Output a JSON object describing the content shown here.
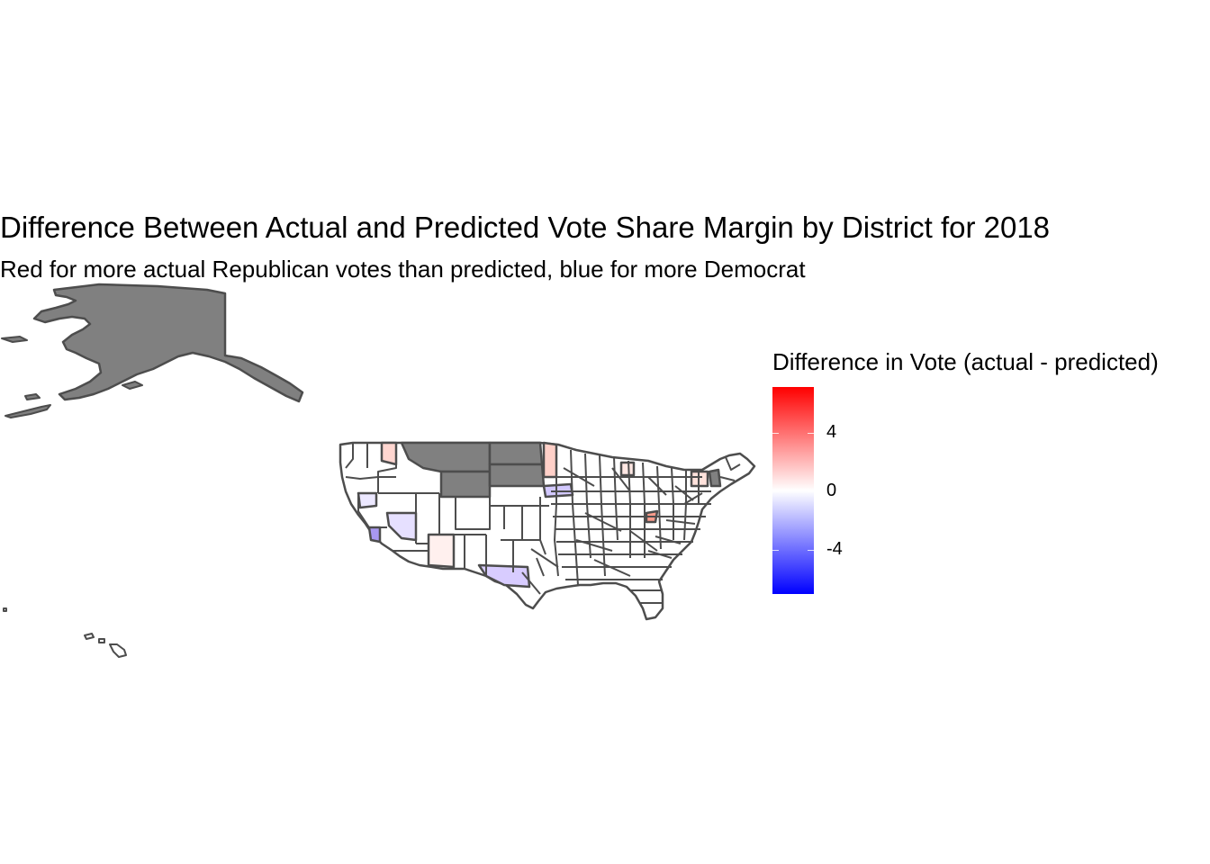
{
  "chart": {
    "title": "Difference Between Actual and Predicted Vote Share Margin by District for 2018",
    "subtitle": "Red for more actual Republican votes than predicted, blue for more Democrat"
  },
  "legend": {
    "title": "Difference in Vote (actual - predicted)",
    "tick_labels": [
      "4",
      "0",
      "-4"
    ],
    "colors": {
      "high": "#ff0000",
      "mid": "#ffffff",
      "low": "#0000ff"
    }
  },
  "colors": {
    "no_data": "#808080",
    "border": "#4d4d4d"
  },
  "chart_data": {
    "type": "choropleth",
    "fill_variable": "Difference in Vote (actual - predicted)",
    "scale": {
      "min": -6.5,
      "max": 6.5,
      "midpoint": 0,
      "ticks": [
        4,
        0,
        -4
      ]
    },
    "missing_regions_color": "#808080"
  }
}
